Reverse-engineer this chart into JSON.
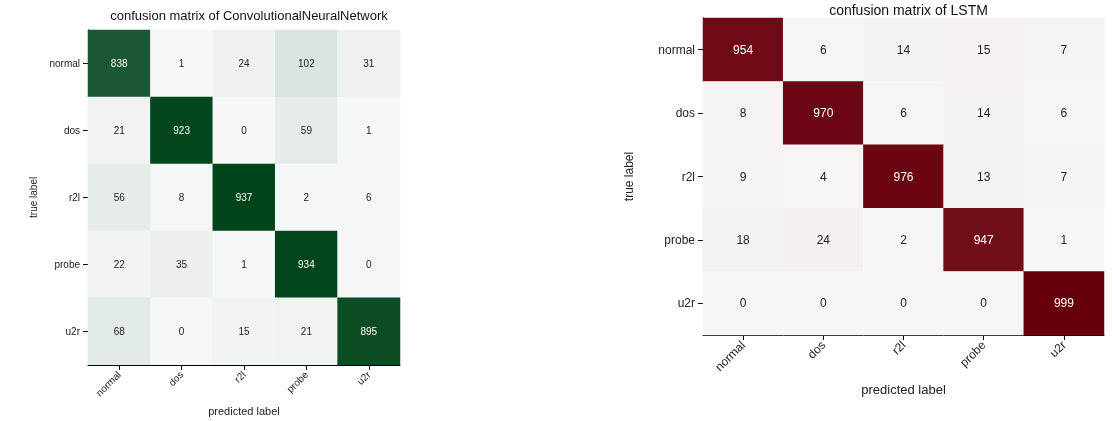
{
  "chart_data": [
    {
      "type": "heatmap",
      "title": "confusion matrix of ConvolutionalNeuralNetwork",
      "xlabel": "predicted label",
      "ylabel": "true label",
      "color": "#00441b",
      "data_labels": true,
      "categories": [
        "normal",
        "dos",
        "r2l",
        "probe",
        "u2r"
      ],
      "y_categories": [
        "normal",
        "dos",
        "r2l",
        "probe",
        "u2r"
      ],
      "cells": [
        [
          838,
          1,
          24,
          102,
          31
        ],
        [
          21,
          923,
          0,
          59,
          1
        ],
        [
          56,
          8,
          937,
          2,
          6
        ],
        [
          22,
          35,
          1,
          934,
          0
        ],
        [
          68,
          0,
          15,
          21,
          895
        ]
      ]
    },
    {
      "type": "heatmap",
      "title": "confusion matrix of LSTM",
      "xlabel": "predicted label",
      "ylabel": "true label",
      "color": "#67000d",
      "data_labels": true,
      "categories": [
        "normal",
        "dos",
        "r2l",
        "probe",
        "u2r"
      ],
      "y_categories": [
        "normal",
        "dos",
        "r2l",
        "probe",
        "u2r"
      ],
      "cells": [
        [
          954,
          6,
          14,
          15,
          7
        ],
        [
          8,
          970,
          6,
          14,
          6
        ],
        [
          9,
          4,
          976,
          13,
          7
        ],
        [
          18,
          24,
          2,
          947,
          1
        ],
        [
          0,
          0,
          0,
          0,
          999
        ]
      ]
    }
  ]
}
